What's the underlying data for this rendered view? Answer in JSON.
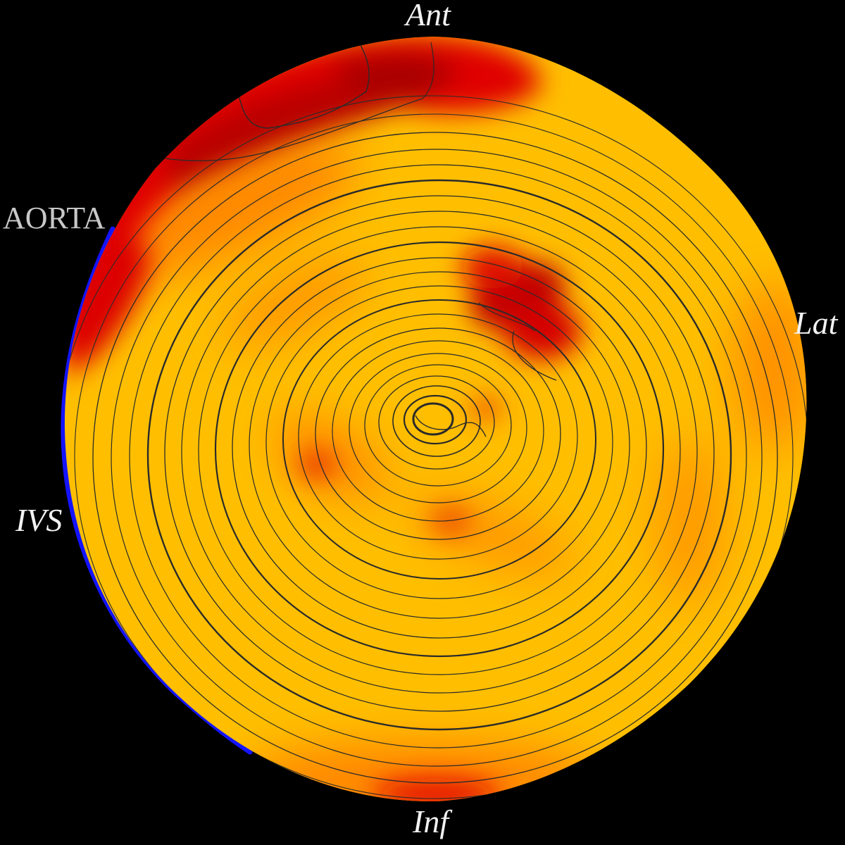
{
  "labels": {
    "anterior": "Ant",
    "inferior": "Inf",
    "lateral": "Lat",
    "septal": "IVS",
    "aorta": "AORTA"
  },
  "colors": {
    "background": "#000000",
    "base": "#ffbf00",
    "hot": "#d40000",
    "warm": "#ff7a00",
    "rim": "#1414ff",
    "contour": "#2a2a2a"
  }
}
